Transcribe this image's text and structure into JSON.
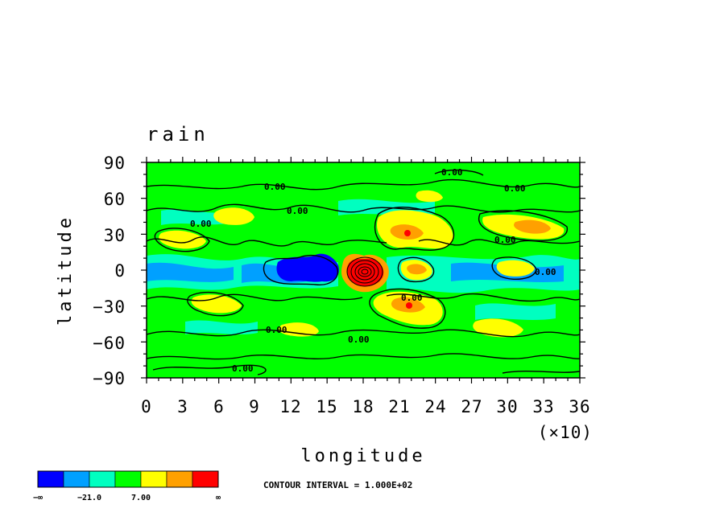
{
  "chart_data": {
    "type": "heatmap",
    "title": "rain",
    "xlabel": "longitude",
    "ylabel": "latitude",
    "x_multiplier_label": "(×10)",
    "x_ticks": [
      "0",
      "3",
      "6",
      "9",
      "12",
      "15",
      "18",
      "21",
      "24",
      "27",
      "30",
      "33",
      "36"
    ],
    "y_ticks": [
      "90",
      "60",
      "30",
      "0",
      "−30",
      "−60",
      "−90"
    ],
    "xlim": [
      0,
      36
    ],
    "ylim": [
      -90,
      90
    ],
    "contour_labels": [
      "0.00",
      "0.00",
      "0.00",
      "0.00",
      "0.00",
      "0.00",
      "0.00",
      "0.00",
      "0.00",
      "0.00",
      "0.00"
    ],
    "contour_info": "CONTOUR INTERVAL = 1.000E+02",
    "colorbar": {
      "colors": [
        "#0000ff",
        "#00a0ff",
        "#00ffc0",
        "#00ff00",
        "#ffff00",
        "#ffa000",
        "#ff0000"
      ],
      "labels": [
        "−∞",
        "−21.0",
        "7.00",
        "∞"
      ]
    },
    "background_color": "#00ff00",
    "features": [
      {
        "name": "red-maximum",
        "lon": 180,
        "lat": 0
      },
      {
        "name": "blue-minimum",
        "lon": 140,
        "lat": 0
      }
    ]
  }
}
